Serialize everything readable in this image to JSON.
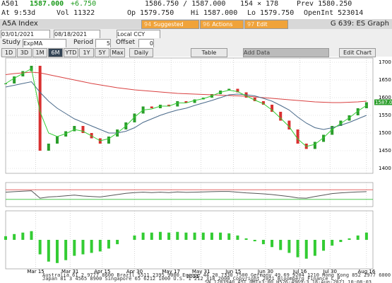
{
  "header": {
    "ticker": "A501",
    "last": "1587.000",
    "change": "+6.750",
    "bidask": "1586.750 / 1587.000",
    "size": "154 × 178",
    "prev": "Prev 1580.250",
    "time": "At 9:53d",
    "vol": "Vol 11322",
    "open": "Op 1579.750",
    "high": "Hi 1587.000",
    "low": "Lo 1579.750",
    "openint": "OpenInt 523014"
  },
  "toolbar": {
    "security": "A5A Index",
    "buttons": [
      {
        "key": "94",
        "label": "Suggested Charts"
      },
      {
        "key": "96",
        "label": "Actions"
      },
      {
        "key": "97",
        "label": "Edit"
      }
    ],
    "page": "G 639: ES Graph"
  },
  "range": {
    "start": "03/01/2021",
    "end": "08/18/2021",
    "currency": "Local CCY"
  },
  "study": {
    "label": "Study",
    "name": "ExpMA",
    "period_label": "Period",
    "period": "5",
    "offset_label": "Offset",
    "offset": "0"
  },
  "periods": [
    "1D",
    "3D",
    "1M",
    "6M",
    "YTD",
    "1Y",
    "5Y",
    "Max"
  ],
  "active_period": 3,
  "frequency": "Daily",
  "table": "Table",
  "add_data": "Add Data",
  "edit_chart": "Edit Chart",
  "chart_data": [
    {
      "type": "candlestick",
      "x": [
        0,
        4,
        8,
        12,
        16,
        20,
        24,
        28,
        32,
        36,
        40,
        44,
        48,
        52,
        56,
        60,
        64,
        68,
        72,
        76,
        80,
        84,
        88,
        92,
        96,
        100,
        104,
        108,
        112,
        116,
        120,
        124,
        128,
        132,
        136,
        140,
        144,
        148,
        152,
        156,
        160,
        164,
        168
      ],
      "values": [
        1640,
        1660,
        1675,
        1690,
        1450,
        1470,
        1490,
        1505,
        1520,
        1500,
        1485,
        1470,
        1490,
        1510,
        1530,
        1555,
        1575,
        1570,
        1580,
        1575,
        1590,
        1585,
        1595,
        1600,
        1610,
        1620,
        1625,
        1615,
        1600,
        1590,
        1580,
        1560,
        1535,
        1510,
        1470,
        1455,
        1475,
        1495,
        1520,
        1535,
        1550,
        1570,
        1587
      ],
      "up_color": "#2a9d2a",
      "down_color": "#d93030",
      "series": [
        {
          "color": "#d94040",
          "values": [
            1665,
            1668,
            1670,
            1672,
            1670,
            1665,
            1660,
            1655,
            1650,
            1645,
            1640,
            1636,
            1632,
            1628,
            1625,
            1622,
            1620,
            1618,
            1616,
            1614,
            1612,
            1611,
            1610,
            1609,
            1608,
            1607,
            1606,
            1605,
            1604,
            1602,
            1600,
            1598,
            1596,
            1594,
            1592,
            1590,
            1588,
            1587,
            1586,
            1586,
            1587,
            1588,
            1590
          ]
        },
        {
          "color": "#4a6a8a",
          "values": [
            1630,
            1635,
            1640,
            1645,
            1615,
            1590,
            1570,
            1555,
            1540,
            1530,
            1520,
            1510,
            1500,
            1500,
            1505,
            1515,
            1530,
            1540,
            1550,
            1558,
            1565,
            1570,
            1578,
            1585,
            1592,
            1600,
            1608,
            1610,
            1608,
            1605,
            1598,
            1590,
            1578,
            1565,
            1545,
            1528,
            1515,
            1510,
            1515,
            1522,
            1530,
            1540,
            1550
          ]
        },
        {
          "color": "#33cc33",
          "values": [
            1640,
            1655,
            1668,
            1682,
            1560,
            1500,
            1490,
            1498,
            1510,
            1505,
            1492,
            1478,
            1484,
            1500,
            1520,
            1545,
            1565,
            1568,
            1576,
            1576,
            1585,
            1585,
            1592,
            1597,
            1605,
            1615,
            1621,
            1617,
            1605,
            1593,
            1583,
            1565,
            1542,
            1518,
            1483,
            1462,
            1468,
            1487,
            1510,
            1527,
            1543,
            1562,
            1578
          ]
        }
      ],
      "ylim": [
        1386,
        1712
      ],
      "yticks": [
        1400,
        1450,
        1500,
        1550,
        1600,
        1650,
        1700
      ],
      "last_label": "1587.000",
      "xlim": [
        0,
        171
      ],
      "xticks": [
        {
          "value": 14,
          "label": "Mar 15"
        },
        {
          "value": 30,
          "label": "Mar 31"
        },
        {
          "value": 45,
          "label": "Apr 15"
        },
        {
          "value": 60,
          "label": "Apr 30"
        },
        {
          "value": 77,
          "label": "May 17"
        },
        {
          "value": 91,
          "label": "May 31"
        },
        {
          "value": 106,
          "label": "Jun 15"
        },
        {
          "value": 121,
          "label": "Jun 30"
        },
        {
          "value": 137,
          "label": "Jul 16"
        },
        {
          "value": 151,
          "label": "Jul 30"
        },
        {
          "value": 168,
          "label": "Aug 16"
        }
      ],
      "year": "2021",
      "grid": true
    },
    {
      "type": "line",
      "color": "#555555",
      "values": [
        60,
        62,
        64,
        66,
        35,
        40,
        42,
        45,
        48,
        44,
        42,
        40,
        45,
        50,
        55,
        58,
        60,
        58,
        60,
        58,
        61,
        59,
        60,
        61,
        62,
        63,
        63,
        60,
        57,
        55,
        53,
        50,
        46,
        42,
        36,
        35,
        42,
        48,
        54,
        57,
        59,
        61,
        62
      ],
      "ylim": [
        0,
        100
      ],
      "upper": 70,
      "lower": 30,
      "upper_color": "#e05050",
      "lower_color": "#30c030"
    },
    {
      "type": "bar",
      "color": "#33cc33",
      "values": [
        5,
        8,
        10,
        12,
        -20,
        -30,
        -32,
        -28,
        -22,
        -20,
        -18,
        -16,
        -12,
        -6,
        0,
        6,
        10,
        10,
        11,
        10,
        11,
        10,
        10,
        10,
        10,
        10,
        9,
        6,
        2,
        -2,
        -6,
        -10,
        -14,
        -18,
        -24,
        -26,
        -22,
        -15,
        -8,
        -3,
        2,
        6,
        10
      ],
      "ylim": [
        -40,
        40
      ]
    }
  ],
  "footer": [
    "Australia 61 2 9777 8600 Brazil 5511 2395 9000 Europe 44 20 7330 7500 Germany 49 69 9204 1210 Hong Kong 852 2977 6000",
    "Japan 81 3 4565 8900 Singapore 65 6212 1000 U.S. 1 212 318 2000 Copyright 2021 Bloomberg Finance L.P.",
    "SN 1283940 AST GMT+3:00 H526-4969-3 18-Aug-2021 10:08:03"
  ]
}
